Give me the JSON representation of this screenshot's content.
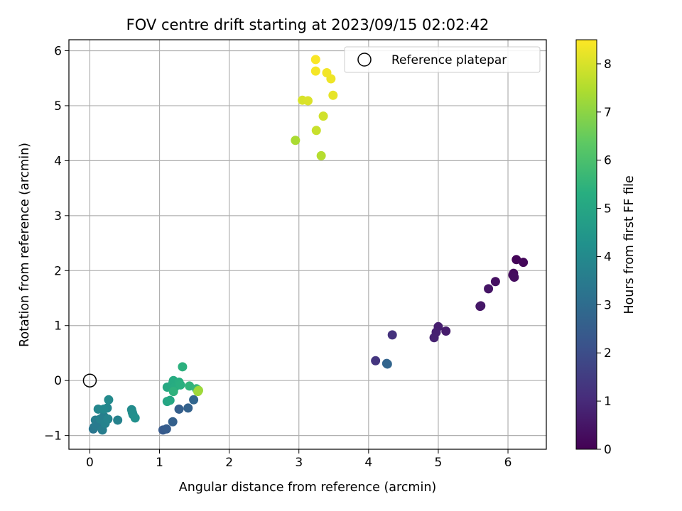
{
  "chart_data": {
    "type": "scatter",
    "title": "FOV centre drift starting at 2023/09/15 02:02:42",
    "xlabel": "Angular distance from reference (arcmin)",
    "ylabel": "Rotation from reference (arcmin)",
    "xlim": [
      -0.3,
      6.55
    ],
    "ylim": [
      -1.25,
      6.2
    ],
    "xticks": [
      0,
      1,
      2,
      3,
      4,
      5,
      6
    ],
    "yticks": [
      -1,
      0,
      1,
      2,
      3,
      4,
      5,
      6
    ],
    "grid": true,
    "colormap": "viridis",
    "colorbar": {
      "label": "Hours from first FF file",
      "range": [
        0,
        8.5
      ],
      "ticks": [
        0,
        1,
        2,
        3,
        4,
        5,
        6,
        7,
        8
      ]
    },
    "legend": {
      "position": "top-right",
      "entries": [
        {
          "label": "Reference platepar",
          "marker": "open-circle"
        }
      ]
    },
    "reference_point": {
      "x": 0,
      "y": 0
    },
    "points": [
      {
        "x": 6.12,
        "y": 2.2,
        "h": 0.1
      },
      {
        "x": 6.22,
        "y": 2.15,
        "h": 0.15
      },
      {
        "x": 6.08,
        "y": 1.95,
        "h": 0.2
      },
      {
        "x": 6.07,
        "y": 1.92,
        "h": 0.25
      },
      {
        "x": 6.09,
        "y": 1.88,
        "h": 0.3
      },
      {
        "x": 5.82,
        "y": 1.8,
        "h": 0.35
      },
      {
        "x": 5.72,
        "y": 1.67,
        "h": 0.45
      },
      {
        "x": 5.6,
        "y": 1.35,
        "h": 0.5
      },
      {
        "x": 5.61,
        "y": 1.36,
        "h": 0.52
      },
      {
        "x": 5.11,
        "y": 0.9,
        "h": 0.65
      },
      {
        "x": 5.0,
        "y": 0.98,
        "h": 0.7
      },
      {
        "x": 4.97,
        "y": 0.88,
        "h": 0.75
      },
      {
        "x": 4.94,
        "y": 0.78,
        "h": 0.8
      },
      {
        "x": 4.34,
        "y": 0.83,
        "h": 1.2
      },
      {
        "x": 4.1,
        "y": 0.36,
        "h": 1.3
      },
      {
        "x": 4.26,
        "y": 0.31,
        "h": 2.7
      },
      {
        "x": 4.27,
        "y": 0.3,
        "h": 2.75
      },
      {
        "x": 1.05,
        "y": -0.9,
        "h": 2.4
      },
      {
        "x": 1.1,
        "y": -0.88,
        "h": 2.45
      },
      {
        "x": 1.19,
        "y": -0.75,
        "h": 2.6
      },
      {
        "x": 1.28,
        "y": -0.52,
        "h": 2.55
      },
      {
        "x": 1.41,
        "y": -0.5,
        "h": 2.65
      },
      {
        "x": 1.49,
        "y": -0.35,
        "h": 2.8
      },
      {
        "x": 0.05,
        "y": -0.88,
        "h": 3.3
      },
      {
        "x": 0.06,
        "y": -0.85,
        "h": 3.4
      },
      {
        "x": 0.09,
        "y": -0.82,
        "h": 3.5
      },
      {
        "x": 0.08,
        "y": -0.72,
        "h": 3.6
      },
      {
        "x": 0.12,
        "y": -0.78,
        "h": 3.45
      },
      {
        "x": 0.15,
        "y": -0.7,
        "h": 3.7
      },
      {
        "x": 0.18,
        "y": -0.9,
        "h": 3.55
      },
      {
        "x": 0.2,
        "y": -0.65,
        "h": 3.65
      },
      {
        "x": 0.22,
        "y": -0.78,
        "h": 3.75
      },
      {
        "x": 0.26,
        "y": -0.7,
        "h": 3.8
      },
      {
        "x": 0.25,
        "y": -0.5,
        "h": 3.85
      },
      {
        "x": 0.12,
        "y": -0.52,
        "h": 3.9
      },
      {
        "x": 0.2,
        "y": -0.52,
        "h": 3.95
      },
      {
        "x": 0.27,
        "y": -0.35,
        "h": 4.0
      },
      {
        "x": 0.4,
        "y": -0.72,
        "h": 3.75
      },
      {
        "x": 0.6,
        "y": -0.53,
        "h": 4.05
      },
      {
        "x": 0.61,
        "y": -0.58,
        "h": 4.1
      },
      {
        "x": 0.62,
        "y": -0.62,
        "h": 4.15
      },
      {
        "x": 0.65,
        "y": -0.68,
        "h": 4.2
      },
      {
        "x": 1.11,
        "y": -0.38,
        "h": 5.0
      },
      {
        "x": 1.15,
        "y": -0.36,
        "h": 5.05
      },
      {
        "x": 1.11,
        "y": -0.12,
        "h": 5.1
      },
      {
        "x": 1.19,
        "y": -0.05,
        "h": 5.15
      },
      {
        "x": 1.2,
        "y": 0.0,
        "h": 5.2
      },
      {
        "x": 1.22,
        "y": -0.12,
        "h": 5.25
      },
      {
        "x": 1.28,
        "y": -0.03,
        "h": 5.3
      },
      {
        "x": 1.3,
        "y": -0.08,
        "h": 5.35
      },
      {
        "x": 1.33,
        "y": 0.25,
        "h": 5.4
      },
      {
        "x": 1.2,
        "y": -0.2,
        "h": 5.45
      },
      {
        "x": 1.43,
        "y": -0.1,
        "h": 5.5
      },
      {
        "x": 1.53,
        "y": -0.15,
        "h": 5.6
      },
      {
        "x": 1.55,
        "y": -0.17,
        "h": 5.7
      },
      {
        "x": 1.56,
        "y": -0.18,
        "h": 7.2
      },
      {
        "x": 1.55,
        "y": -0.2,
        "h": 7.25
      },
      {
        "x": 2.95,
        "y": 4.37,
        "h": 7.4
      },
      {
        "x": 3.32,
        "y": 4.09,
        "h": 7.55
      },
      {
        "x": 3.25,
        "y": 4.55,
        "h": 7.8
      },
      {
        "x": 3.35,
        "y": 4.81,
        "h": 7.9
      },
      {
        "x": 3.05,
        "y": 5.1,
        "h": 8.0
      },
      {
        "x": 3.13,
        "y": 5.09,
        "h": 8.05
      },
      {
        "x": 3.49,
        "y": 5.19,
        "h": 8.2
      },
      {
        "x": 3.46,
        "y": 5.49,
        "h": 8.3
      },
      {
        "x": 3.4,
        "y": 5.6,
        "h": 8.35
      },
      {
        "x": 3.24,
        "y": 5.63,
        "h": 8.4
      },
      {
        "x": 3.24,
        "y": 5.84,
        "h": 8.45
      }
    ]
  }
}
